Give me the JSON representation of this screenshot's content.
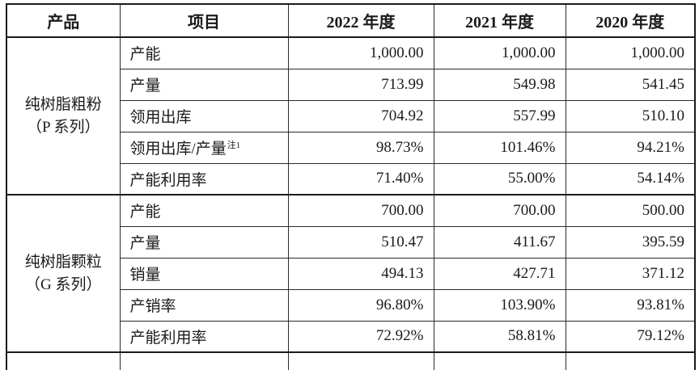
{
  "table": {
    "headers": [
      "产品",
      "项目",
      "2022 年度",
      "2021 年度",
      "2020 年度"
    ],
    "groups": [
      {
        "product_line1": "纯树脂粗粉",
        "product_line2": "（P 系列）",
        "rows": [
          {
            "item": "产能",
            "values": [
              "1,000.00",
              "1,000.00",
              "1,000.00"
            ]
          },
          {
            "item": "产量",
            "values": [
              "713.99",
              "549.98",
              "541.45"
            ]
          },
          {
            "item": "领用出库",
            "values": [
              "704.92",
              "557.99",
              "510.10"
            ]
          },
          {
            "item": "领用出库/产量",
            "note": "注1",
            "values": [
              "98.73%",
              "101.46%",
              "94.21%"
            ]
          },
          {
            "item": "产能利用率",
            "values": [
              "71.40%",
              "55.00%",
              "54.14%"
            ]
          }
        ]
      },
      {
        "product_line1": "纯树脂颗粒",
        "product_line2": "（G 系列）",
        "rows": [
          {
            "item": "产能",
            "values": [
              "700.00",
              "700.00",
              "500.00"
            ]
          },
          {
            "item": "产量",
            "values": [
              "510.47",
              "411.67",
              "395.59"
            ]
          },
          {
            "item": "销量",
            "values": [
              "494.13",
              "427.71",
              "371.12"
            ]
          },
          {
            "item": "产销率",
            "values": [
              "96.80%",
              "103.90%",
              "93.81%"
            ]
          },
          {
            "item": "产能利用率",
            "values": [
              "72.92%",
              "58.81%",
              "79.12%"
            ]
          }
        ]
      }
    ],
    "colors": {
      "border": "#1a1a1a",
      "text": "#1a1a1a",
      "background": "#ffffff"
    }
  }
}
